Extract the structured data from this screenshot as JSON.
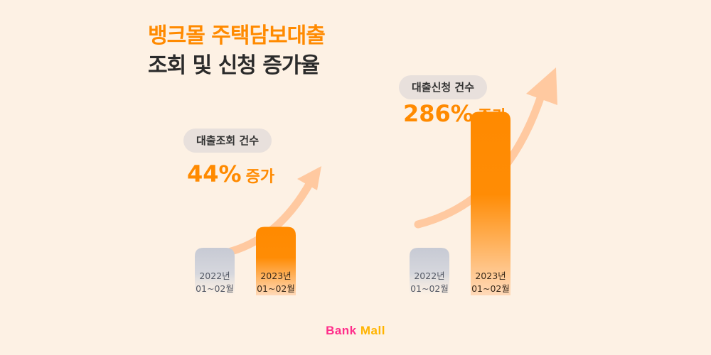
{
  "header": {
    "title_line1": "뱅크몰 주택담보대출",
    "title_line2": "조회 및 신청 증가율"
  },
  "logo": {
    "word1": "Bank",
    "word2": "Mall"
  },
  "chart_data": [
    {
      "type": "bar",
      "title": "대출조회 건수",
      "categories": [
        "2022년\n01~02월",
        "2023년\n01~02월"
      ],
      "values": [
        100,
        144
      ],
      "increase_label": "44%",
      "increase_suffix": "증가"
    },
    {
      "type": "bar",
      "title": "대출신청 건수",
      "categories": [
        "2022년\n01~02월",
        "2023년\n01~02월"
      ],
      "values": [
        100,
        386
      ],
      "increase_label": "286%",
      "increase_suffix": "증가"
    }
  ],
  "colors": {
    "accent": "#ff8a00",
    "bar_prev": "#c9ccd6",
    "arrow": "#ffc9a0",
    "background": "#fdf1e4"
  }
}
